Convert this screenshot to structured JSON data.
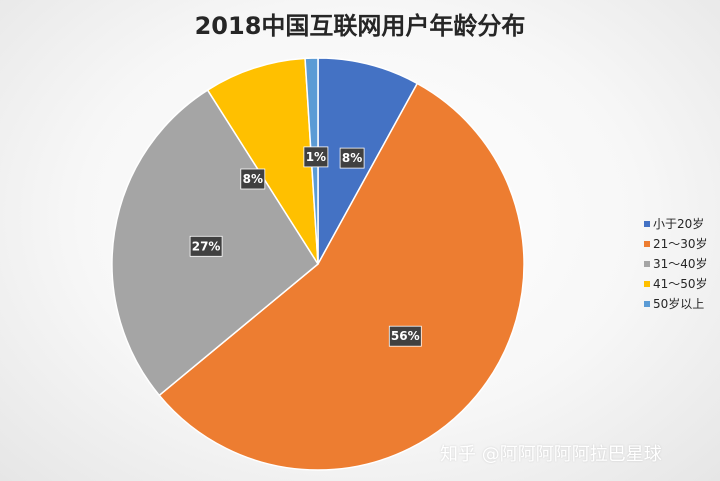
{
  "chart_data": {
    "type": "pie",
    "title": "2018中国互联网用户年龄分布",
    "categories": [
      "小于20岁",
      "21～30岁",
      "31～40岁",
      "41～50岁",
      "50岁以上"
    ],
    "values": [
      8,
      56,
      27,
      8,
      1
    ],
    "data_labels": [
      "8%",
      "56%",
      "27%",
      "8%",
      "1%"
    ],
    "colors": [
      "#4472C4",
      "#ED7D31",
      "#A5A5A5",
      "#FFC000",
      "#5B9BD5"
    ],
    "legend_position": "right"
  },
  "watermark": "知乎 @阿阿阿阿阿拉巴星球"
}
